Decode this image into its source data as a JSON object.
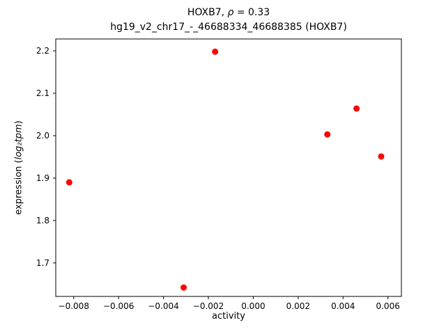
{
  "chart_data": {
    "type": "scatter",
    "title": "HOXB7, ρ = 0.33",
    "title_parts": {
      "prefix": "HOXB7, ",
      "math": "ρ",
      "suffix": " = 0.33"
    },
    "subtitle": "hg19_v2_chr17_-_46688334_46688385 (HOXB7)",
    "xlabel": "activity",
    "ylabel": "expression (log₂tpm)",
    "ylabel_parts": {
      "prefix": "expression (",
      "math": "log₂tpm",
      "suffix": ")"
    },
    "marker_color": "#ff0000",
    "marker_radius_px": 4.5,
    "grid": false,
    "xlim": [
      -0.0088,
      0.0066
    ],
    "ylim": [
      1.621,
      2.228
    ],
    "xticks": [
      {
        "v": -0.008,
        "label": "−0.008"
      },
      {
        "v": -0.006,
        "label": "−0.006"
      },
      {
        "v": -0.004,
        "label": "−0.004"
      },
      {
        "v": -0.002,
        "label": "−0.002"
      },
      {
        "v": 0.0,
        "label": "0.000"
      },
      {
        "v": 0.002,
        "label": "0.002"
      },
      {
        "v": 0.004,
        "label": "0.004"
      },
      {
        "v": 0.006,
        "label": "0.006"
      }
    ],
    "yticks": [
      {
        "v": 1.7,
        "label": "1.7"
      },
      {
        "v": 1.8,
        "label": "1.8"
      },
      {
        "v": 1.9,
        "label": "1.9"
      },
      {
        "v": 2.0,
        "label": "2.0"
      },
      {
        "v": 2.1,
        "label": "2.1"
      },
      {
        "v": 2.2,
        "label": "2.2"
      }
    ],
    "points": [
      {
        "x": -0.0082,
        "y": 1.89
      },
      {
        "x": -0.0031,
        "y": 1.642
      },
      {
        "x": -0.0017,
        "y": 2.198
      },
      {
        "x": 0.0033,
        "y": 2.003
      },
      {
        "x": 0.0046,
        "y": 2.064
      },
      {
        "x": 0.0057,
        "y": 1.951
      }
    ]
  }
}
